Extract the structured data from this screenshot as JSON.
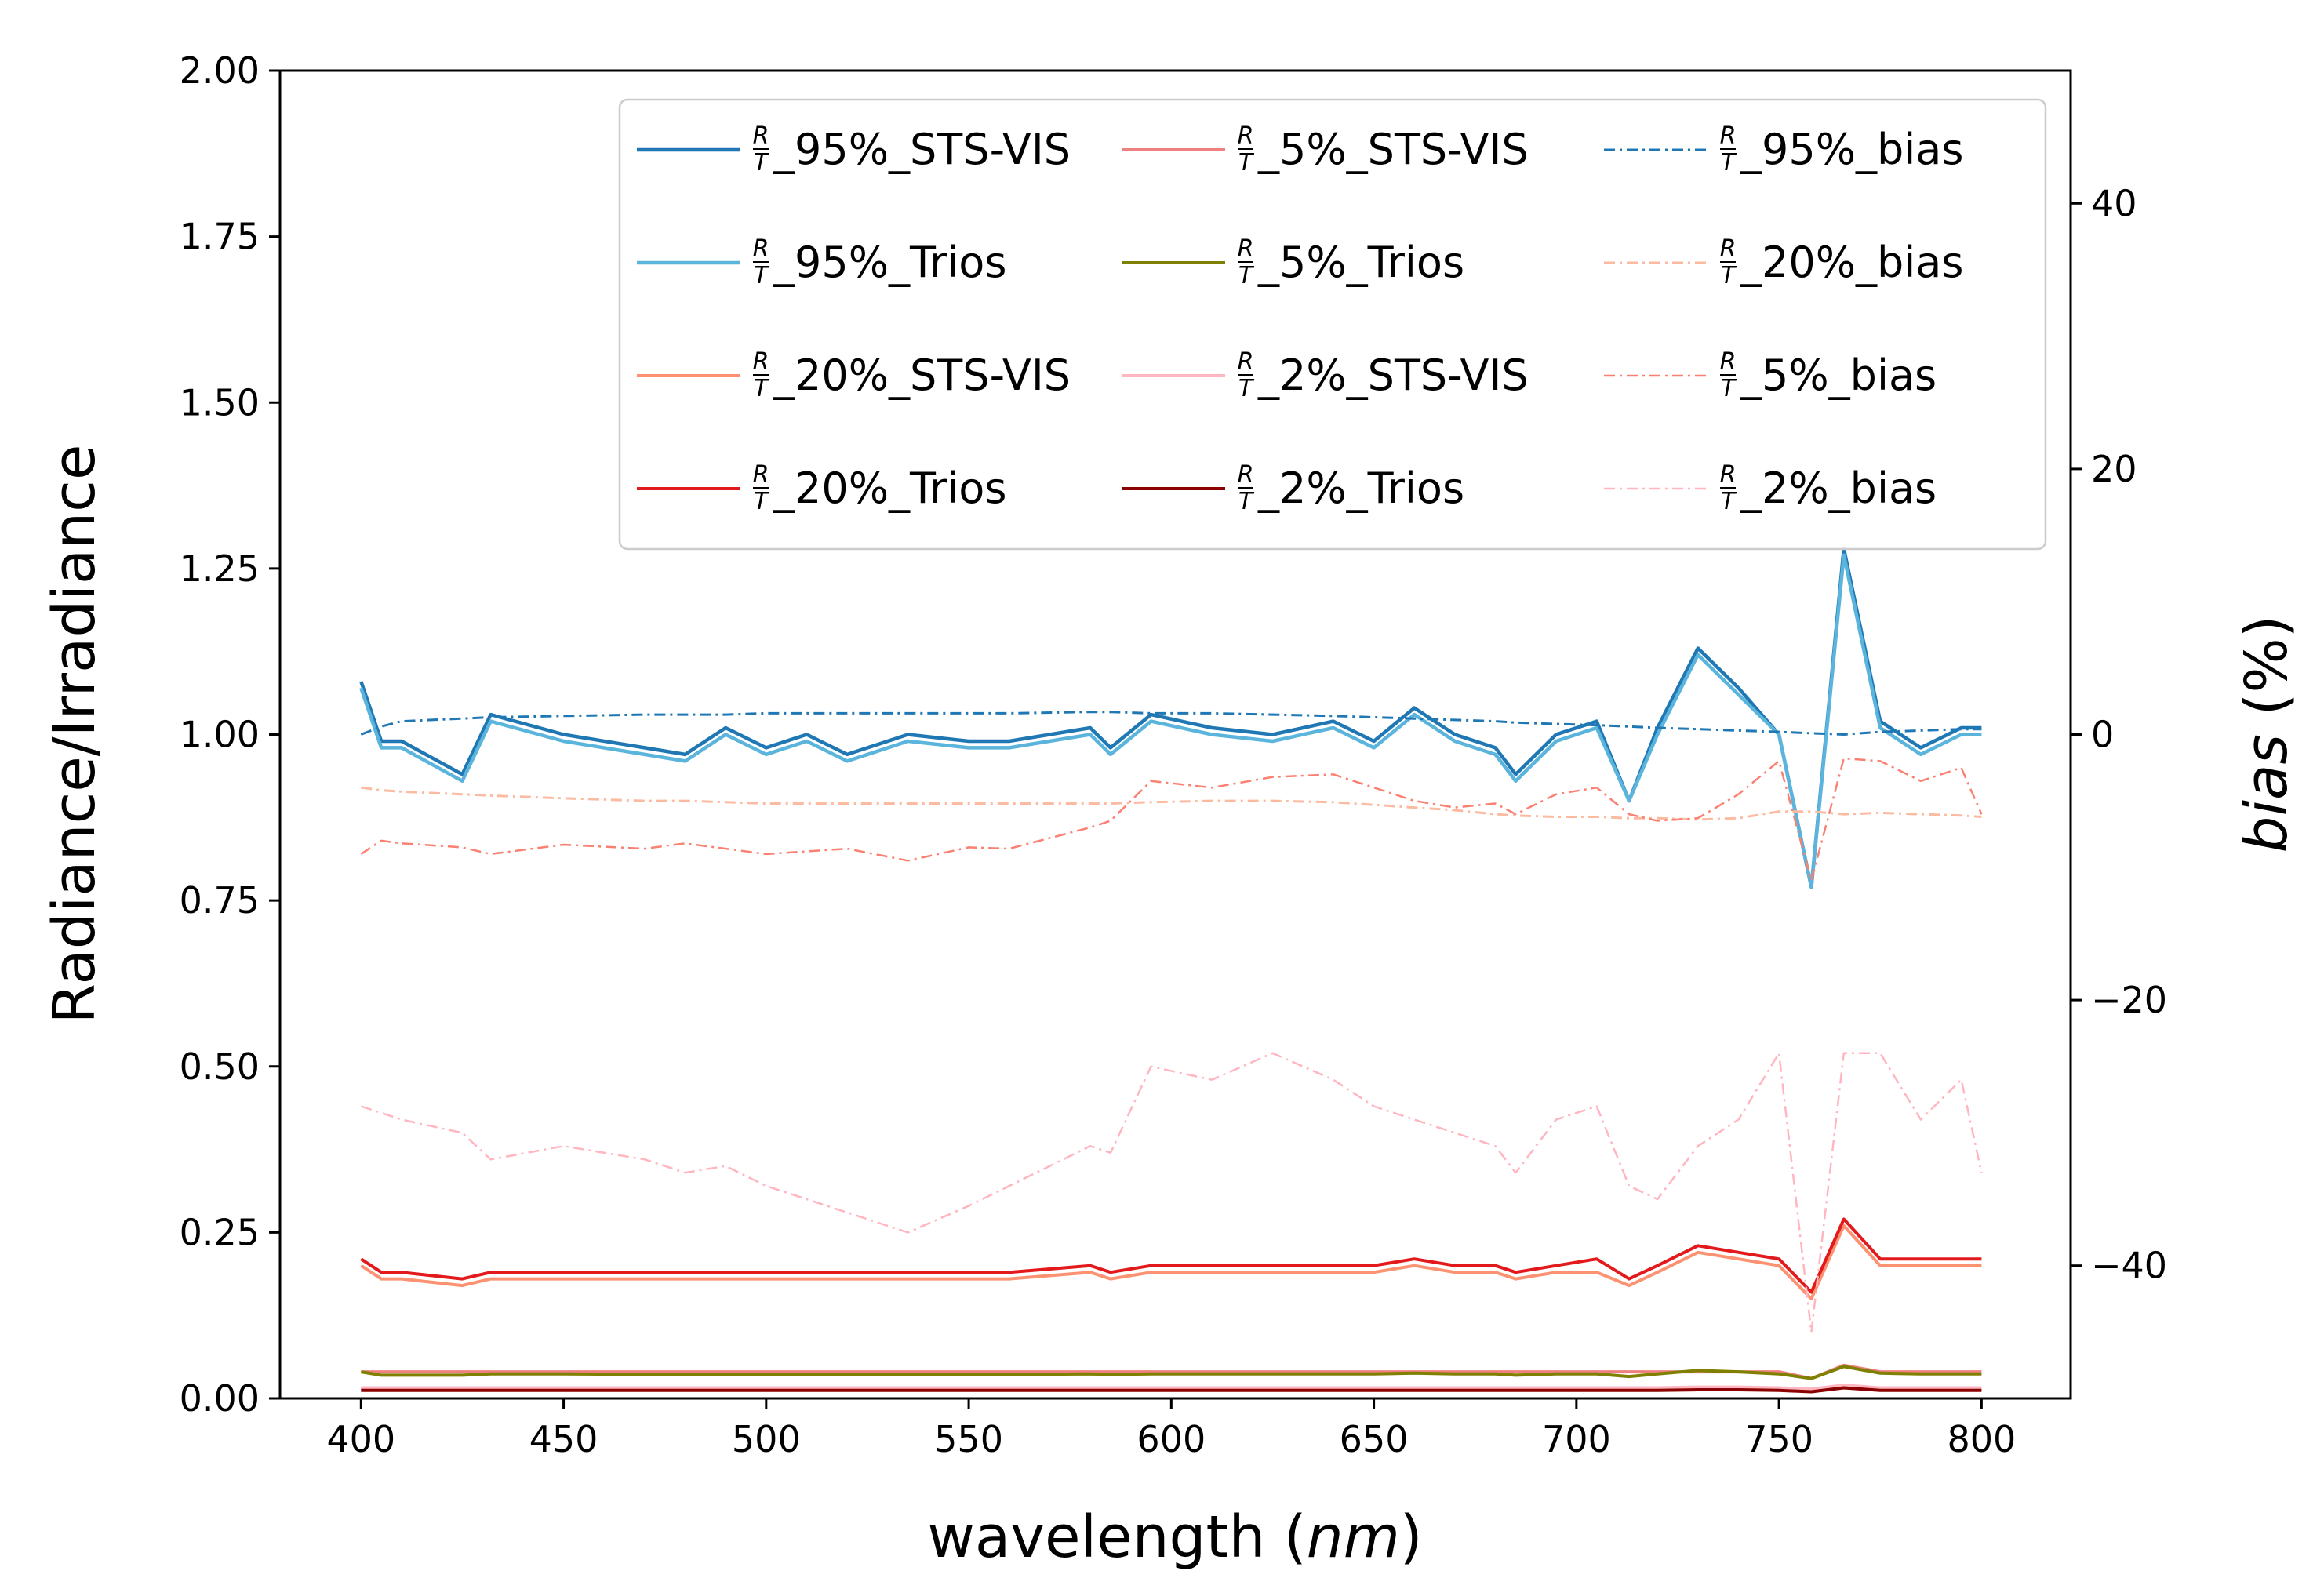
{
  "chart_data": {
    "type": "line",
    "xlabel_text": "wavelength (",
    "xlabel_unit": "nm",
    "xlabel_close": ")",
    "ylabel": "Radiance/Irradiance",
    "y2label_main": "bias",
    "y2label_unit": " (%)",
    "xlim": [
      380,
      822
    ],
    "ylim": [
      0,
      2.0
    ],
    "y2lim": [
      -50,
      50
    ],
    "xticks": [
      "400",
      "450",
      "500",
      "550",
      "600",
      "650",
      "700",
      "750",
      "800"
    ],
    "yticks": [
      "0.00",
      "0.25",
      "0.50",
      "0.75",
      "1.00",
      "1.25",
      "1.50",
      "1.75",
      "2.00"
    ],
    "y2ticks": [
      "−40",
      "−20",
      "0",
      "20",
      "40"
    ],
    "x": [
      400,
      405,
      410,
      425,
      432,
      450,
      470,
      480,
      490,
      500,
      510,
      520,
      535,
      550,
      560,
      580,
      585,
      595,
      610,
      625,
      640,
      650,
      660,
      670,
      680,
      685,
      695,
      705,
      713,
      720,
      730,
      740,
      750,
      758,
      766,
      775,
      785,
      795,
      800
    ],
    "series": [
      {
        "name": "_95%_STS-VIS",
        "axis": "left",
        "color": "#1f77b4",
        "dash": "solid",
        "width": 4.5,
        "values": [
          1.08,
          0.99,
          0.99,
          0.94,
          1.03,
          1.0,
          0.98,
          0.97,
          1.01,
          0.98,
          1.0,
          0.97,
          1.0,
          0.99,
          0.99,
          1.01,
          0.98,
          1.03,
          1.01,
          1.0,
          1.02,
          0.99,
          1.04,
          1.0,
          0.98,
          0.94,
          1.0,
          1.02,
          0.9,
          1.01,
          1.13,
          1.07,
          1.0,
          0.77,
          1.28,
          1.02,
          0.98,
          1.01,
          1.01
        ]
      },
      {
        "name": "_95%_Trios",
        "axis": "left",
        "color": "#5ab4dc",
        "dash": "solid",
        "width": 4.5,
        "values": [
          1.07,
          0.98,
          0.98,
          0.93,
          1.02,
          0.99,
          0.97,
          0.96,
          1.0,
          0.97,
          0.99,
          0.96,
          0.99,
          0.98,
          0.98,
          1.0,
          0.97,
          1.02,
          1.0,
          0.99,
          1.01,
          0.98,
          1.03,
          0.99,
          0.97,
          0.93,
          0.99,
          1.01,
          0.9,
          1.0,
          1.12,
          1.06,
          1.0,
          0.77,
          1.27,
          1.01,
          0.97,
          1.0,
          1.0
        ]
      },
      {
        "name": "_20%_STS-VIS",
        "axis": "left",
        "color": "#fc9272",
        "dash": "solid",
        "width": 4,
        "values": [
          0.2,
          0.18,
          0.18,
          0.17,
          0.18,
          0.18,
          0.18,
          0.18,
          0.18,
          0.18,
          0.18,
          0.18,
          0.18,
          0.18,
          0.18,
          0.19,
          0.18,
          0.19,
          0.19,
          0.19,
          0.19,
          0.19,
          0.2,
          0.19,
          0.19,
          0.18,
          0.19,
          0.19,
          0.17,
          0.19,
          0.22,
          0.21,
          0.2,
          0.15,
          0.26,
          0.2,
          0.2,
          0.2,
          0.2
        ]
      },
      {
        "name": "_20%_Trios",
        "axis": "left",
        "color": "#e31a1c",
        "dash": "solid",
        "width": 4,
        "values": [
          0.21,
          0.19,
          0.19,
          0.18,
          0.19,
          0.19,
          0.19,
          0.19,
          0.19,
          0.19,
          0.19,
          0.19,
          0.19,
          0.19,
          0.19,
          0.2,
          0.19,
          0.2,
          0.2,
          0.2,
          0.2,
          0.2,
          0.21,
          0.2,
          0.2,
          0.19,
          0.2,
          0.21,
          0.18,
          0.2,
          0.23,
          0.22,
          0.21,
          0.16,
          0.27,
          0.21,
          0.21,
          0.21,
          0.21
        ]
      },
      {
        "name": "_5%_STS-VIS",
        "axis": "left",
        "color": "#f08080",
        "dash": "solid",
        "width": 4,
        "values": [
          0.04,
          0.04,
          0.04,
          0.04,
          0.04,
          0.04,
          0.04,
          0.04,
          0.04,
          0.04,
          0.04,
          0.04,
          0.04,
          0.04,
          0.04,
          0.04,
          0.04,
          0.04,
          0.04,
          0.04,
          0.04,
          0.04,
          0.04,
          0.04,
          0.04,
          0.04,
          0.04,
          0.04,
          0.04,
          0.04,
          0.04,
          0.04,
          0.04,
          0.03,
          0.05,
          0.04,
          0.04,
          0.04,
          0.04
        ]
      },
      {
        "name": "_5%_Trios",
        "axis": "left",
        "color": "#808000",
        "dash": "solid",
        "width": 4,
        "values": [
          0.04,
          0.035,
          0.035,
          0.035,
          0.037,
          0.037,
          0.036,
          0.036,
          0.036,
          0.036,
          0.036,
          0.036,
          0.036,
          0.036,
          0.036,
          0.037,
          0.036,
          0.037,
          0.037,
          0.037,
          0.037,
          0.037,
          0.038,
          0.037,
          0.037,
          0.035,
          0.037,
          0.037,
          0.033,
          0.037,
          0.042,
          0.04,
          0.037,
          0.03,
          0.048,
          0.038,
          0.037,
          0.037,
          0.037
        ]
      },
      {
        "name": "_2%_STS-VIS",
        "axis": "left",
        "color": "#ffb6c1",
        "dash": "solid",
        "width": 4,
        "values": [
          0.016,
          0.016,
          0.016,
          0.016,
          0.016,
          0.016,
          0.016,
          0.016,
          0.016,
          0.016,
          0.016,
          0.016,
          0.016,
          0.016,
          0.016,
          0.016,
          0.016,
          0.016,
          0.016,
          0.016,
          0.016,
          0.016,
          0.016,
          0.016,
          0.016,
          0.016,
          0.016,
          0.016,
          0.016,
          0.016,
          0.017,
          0.017,
          0.016,
          0.014,
          0.02,
          0.016,
          0.016,
          0.016,
          0.016
        ]
      },
      {
        "name": "_2%_Trios",
        "axis": "left",
        "color": "#8b0000",
        "dash": "solid",
        "width": 4,
        "values": [
          0.012,
          0.012,
          0.012,
          0.012,
          0.012,
          0.012,
          0.012,
          0.012,
          0.012,
          0.012,
          0.012,
          0.012,
          0.012,
          0.012,
          0.012,
          0.012,
          0.012,
          0.012,
          0.012,
          0.012,
          0.012,
          0.012,
          0.012,
          0.012,
          0.012,
          0.012,
          0.012,
          0.012,
          0.012,
          0.012,
          0.013,
          0.013,
          0.012,
          0.01,
          0.016,
          0.012,
          0.012,
          0.012,
          0.012
        ]
      },
      {
        "name": "_95%_bias",
        "axis": "right",
        "color": "#1f77b4",
        "dash": "dashdot",
        "width": 3,
        "values": [
          0.0,
          0.6,
          1.0,
          1.2,
          1.3,
          1.4,
          1.5,
          1.5,
          1.5,
          1.6,
          1.6,
          1.6,
          1.6,
          1.6,
          1.6,
          1.7,
          1.7,
          1.6,
          1.6,
          1.5,
          1.4,
          1.3,
          1.2,
          1.1,
          1.0,
          0.9,
          0.8,
          0.7,
          0.6,
          0.5,
          0.4,
          0.3,
          0.2,
          0.1,
          0.0,
          0.2,
          0.3,
          0.4,
          0.4
        ]
      },
      {
        "name": "_20%_bias",
        "axis": "right",
        "color": "#fcbba1",
        "dash": "dashdot",
        "width": 3,
        "values": [
          -4.0,
          -4.2,
          -4.3,
          -4.5,
          -4.6,
          -4.8,
          -5.0,
          -5.0,
          -5.1,
          -5.2,
          -5.2,
          -5.2,
          -5.2,
          -5.2,
          -5.2,
          -5.2,
          -5.2,
          -5.1,
          -5.0,
          -5.0,
          -5.1,
          -5.3,
          -5.5,
          -5.7,
          -6.0,
          -6.1,
          -6.2,
          -6.2,
          -6.3,
          -6.3,
          -6.4,
          -6.3,
          -5.8,
          -5.8,
          -6.0,
          -5.9,
          -6.0,
          -6.1,
          -6.2
        ]
      },
      {
        "name": "_5%_bias",
        "axis": "right",
        "color": "#fa8072",
        "dash": "dashdot",
        "width": 2.5,
        "values": [
          -9.0,
          -8.0,
          -8.2,
          -8.5,
          -9.0,
          -8.3,
          -8.6,
          -8.2,
          -8.6,
          -9.0,
          -8.8,
          -8.6,
          -9.5,
          -8.5,
          -8.6,
          -7.0,
          -6.5,
          -3.5,
          -4.0,
          -3.2,
          -3.0,
          -4.0,
          -5.0,
          -5.5,
          -5.2,
          -6.0,
          -4.5,
          -4.0,
          -6.0,
          -6.5,
          -6.3,
          -4.5,
          -2.0,
          -11.0,
          -1.8,
          -2.0,
          -3.5,
          -2.5,
          -6.0
        ]
      },
      {
        "name": "_2%_bias",
        "axis": "right",
        "color": "#ffb6c1",
        "dash": "dashdot",
        "width": 2.5,
        "values": [
          -28.0,
          -28.5,
          -29.0,
          -30.0,
          -32.0,
          -31.0,
          -32.0,
          -33.0,
          -32.5,
          -34.0,
          -35.0,
          -36.0,
          -37.5,
          -35.5,
          -34.0,
          -31.0,
          -31.5,
          -25.0,
          -26.0,
          -24.0,
          -26.0,
          -28.0,
          -29.0,
          -30.0,
          -31.0,
          -33.0,
          -29.0,
          -28.0,
          -34.0,
          -35.0,
          -31.0,
          -29.0,
          -24.0,
          -45.0,
          -24.0,
          -24.0,
          -29.0,
          -26.0,
          -33.0
        ]
      }
    ],
    "legend": {
      "position": "top-right",
      "entries": [
        {
          "frac_num": "R",
          "frac_den": "T",
          "label": "_95%_STS-VIS"
        },
        {
          "frac_num": "R",
          "frac_den": "T",
          "label": "_5%_STS-VIS"
        },
        {
          "frac_num": "R",
          "frac_den": "T",
          "label": "_95%_bias"
        },
        {
          "frac_num": "R",
          "frac_den": "T",
          "label": "_95%_Trios"
        },
        {
          "frac_num": "R",
          "frac_den": "T",
          "label": "_5%_Trios"
        },
        {
          "frac_num": "R",
          "frac_den": "T",
          "label": "_20%_bias"
        },
        {
          "frac_num": "R",
          "frac_den": "T",
          "label": "_20%_STS-VIS"
        },
        {
          "frac_num": "R",
          "frac_den": "T",
          "label": "_2%_STS-VIS"
        },
        {
          "frac_num": "R",
          "frac_den": "T",
          "label": "_5%_bias"
        },
        {
          "frac_num": "R",
          "frac_den": "T",
          "label": "_20%_Trios"
        },
        {
          "frac_num": "R",
          "frac_den": "T",
          "label": "_2%_Trios"
        },
        {
          "frac_num": "R",
          "frac_den": "T",
          "label": "_2%_bias"
        }
      ]
    }
  }
}
